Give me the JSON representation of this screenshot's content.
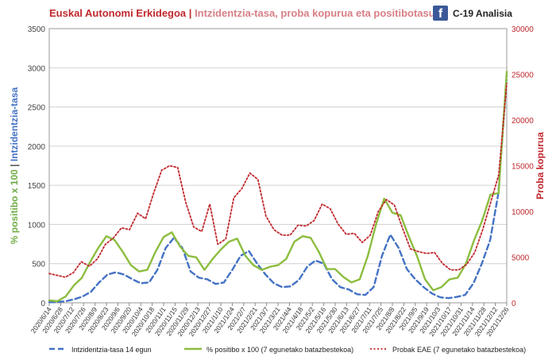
{
  "header": {
    "title_part1": "Euskal Autonomi Erkidegoa",
    "separator": "|",
    "title_part2": "Intzidentzia-tasa, proba kopurua eta positibotasuna",
    "brand_icon": "facebook-icon",
    "brand_text": "C-19 Analisia"
  },
  "colors": {
    "incidence": "#4472c4",
    "positivity": "#8cbd3f",
    "tests": "#c0282d",
    "grid": "#d0d0d0",
    "left_axis_title_green": "#70ad47",
    "left_axis_title_blue": "#4472c4"
  },
  "chart_data": {
    "type": "line",
    "title": "Intzidentzia-tasa, proba kopurua eta positibotasuna",
    "y_left": {
      "label_part1": "% positibo x 100",
      "label_sep": "|",
      "label_part2": "Intzidentzia-tasa",
      "ylim": [
        0,
        3500
      ],
      "ticks": [
        "0",
        "500",
        "1000",
        "1500",
        "2000",
        "2500",
        "3000",
        "3500"
      ]
    },
    "y_right": {
      "label": "Proba kopurua",
      "ylim": [
        0,
        30000
      ],
      "ticks": [
        "0",
        "5000",
        "10000",
        "15000",
        "20000",
        "25000",
        "30000"
      ]
    },
    "x_ticks": [
      "2020/6/14",
      "2020/6/28",
      "2020/7/12",
      "2020/7/26",
      "2020/8/9",
      "2020/8/23",
      "2020/9/6",
      "2020/9/20",
      "2020/10/4",
      "2020/10/18",
      "2020/11/1",
      "2020/11/15",
      "2020/11/29",
      "2020/12/13",
      "2020/12/27",
      "2021/1/10",
      "2021/1/24",
      "2021/2/7",
      "2021/2/21",
      "2021/3/7",
      "2021/3/21",
      "2021/4/4",
      "2021/4/18",
      "2021/5/2",
      "2021/5/16",
      "2021/5/30",
      "2021/6/13",
      "2021/6/27",
      "2021/7/11",
      "2021/7/25",
      "2021/8/8",
      "2021/8/22",
      "2021/9/5",
      "2021/9/19",
      "2021/10/3",
      "2021/10/17",
      "2021/10/31",
      "2021/11/14",
      "2021/11/28",
      "2021/12/12",
      "2021/12/26"
    ],
    "grid": "horizontal",
    "legend_position": "bottom",
    "series": [
      {
        "name": "Intzidentzia-tasa 14 egun",
        "axis": "left",
        "style": "dashed",
        "values": [
          8,
          10,
          20,
          45,
          80,
          140,
          260,
          360,
          390,
          360,
          300,
          250,
          260,
          420,
          700,
          830,
          700,
          400,
          320,
          300,
          240,
          260,
          420,
          600,
          660,
          500,
          360,
          250,
          200,
          210,
          290,
          460,
          540,
          500,
          300,
          200,
          170,
          110,
          100,
          200,
          600,
          870,
          700,
          430,
          300,
          200,
          120,
          70,
          60,
          75,
          100,
          250,
          500,
          800,
          1400,
          2900
        ]
      },
      {
        "name": "% positibo x 100 (7 egunetako batazbestekoa)",
        "axis": "left",
        "style": "solid",
        "values": [
          30,
          20,
          80,
          220,
          320,
          520,
          700,
          850,
          800,
          650,
          480,
          400,
          420,
          650,
          840,
          900,
          720,
          600,
          580,
          420,
          560,
          680,
          780,
          820,
          600,
          480,
          420,
          460,
          480,
          560,
          780,
          850,
          830,
          650,
          430,
          430,
          330,
          260,
          300,
          600,
          1000,
          1330,
          1150,
          1120,
          850,
          600,
          300,
          160,
          200,
          300,
          320,
          500,
          800,
          1050,
          1380,
          1400,
          2950
        ]
      },
      {
        "name": "Probak EAE (7 egunetako batazbestekoa)",
        "axis": "right",
        "style": "dotted",
        "values": [
          3200,
          3000,
          2800,
          3300,
          4500,
          4000,
          4800,
          6400,
          7100,
          8200,
          8000,
          9800,
          9200,
          12000,
          14500,
          15000,
          14800,
          11000,
          8300,
          7800,
          10800,
          6400,
          7000,
          11500,
          12500,
          14200,
          13500,
          9500,
          8000,
          7400,
          7400,
          8500,
          8400,
          9000,
          10800,
          10300,
          8600,
          7500,
          7600,
          6600,
          7400,
          10000,
          11300,
          10700,
          8200,
          5900,
          5600,
          5400,
          5500,
          4300,
          3600,
          3600,
          4200,
          5500,
          8000,
          11000,
          14000,
          24000
        ]
      }
    ]
  }
}
